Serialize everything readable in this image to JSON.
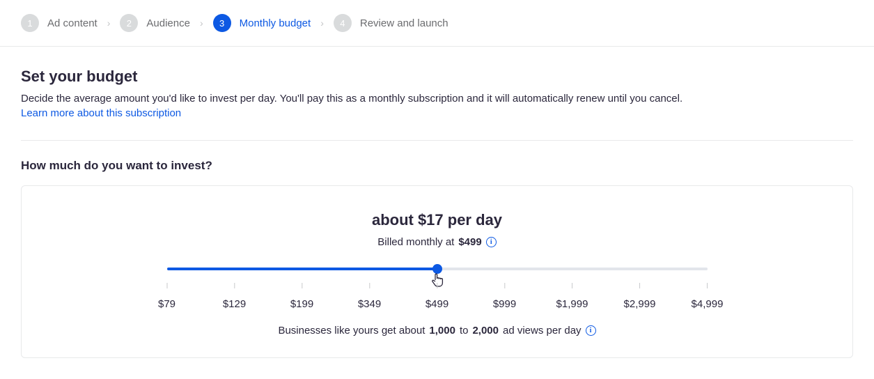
{
  "stepper": {
    "steps": [
      {
        "num": "1",
        "label": "Ad content",
        "active": false
      },
      {
        "num": "2",
        "label": "Audience",
        "active": false
      },
      {
        "num": "3",
        "label": "Monthly budget",
        "active": true
      },
      {
        "num": "4",
        "label": "Review and launch",
        "active": false
      }
    ]
  },
  "header": {
    "title": "Set your budget",
    "description": "Decide the average amount you'd like to invest per day. You'll pay this as a monthly subscription and it will automatically renew until you cancel.",
    "learn_more": "Learn more about this subscription"
  },
  "question": "How much do you want to invest?",
  "budget_card": {
    "per_day": "about $17 per day",
    "billed_prefix": "Billed monthly at ",
    "billed_amount": "$499",
    "slider": {
      "fill_percent": 50,
      "tick_positions_percent": [
        0,
        12.5,
        25,
        37.5,
        50,
        62.5,
        75,
        87.5,
        100
      ],
      "tick_labels": [
        "$79",
        "$129",
        "$199",
        "$349",
        "$499",
        "$999",
        "$1,999",
        "$2,999",
        "$4,999"
      ],
      "track_color": "#e2e5eb",
      "fill_color": "#0d59e3",
      "handle_color": "#0d59e3"
    },
    "footer": {
      "prefix": "Businesses like yours get about ",
      "low": "1,000",
      "mid": " to ",
      "high": "2,000",
      "suffix": " ad views per day"
    }
  },
  "colors": {
    "link": "#0d59e3",
    "active_step_bg": "#0d59e3",
    "inactive_step_bg": "#d9dbdc",
    "border": "#e8e9ea"
  }
}
